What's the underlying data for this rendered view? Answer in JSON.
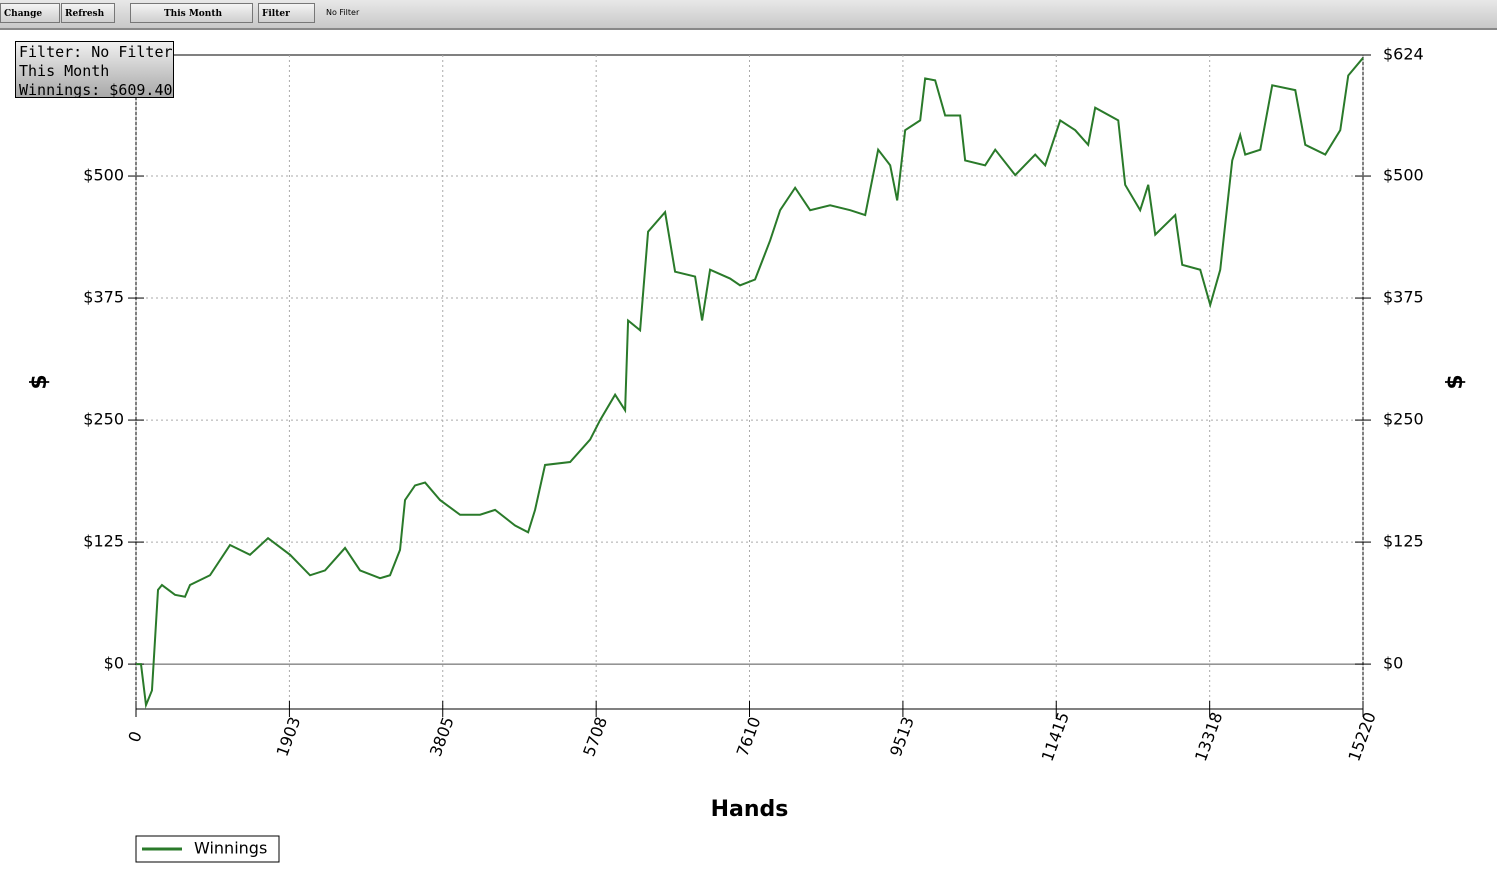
{
  "ui": {
    "toolbar": {
      "change": "Change",
      "refresh": "Refresh",
      "period": "This Month",
      "filter": "Filter",
      "filter_status": "No Filter"
    },
    "info_box": [
      "Filter: No Filter",
      "This Month",
      "Winnings: $609.40"
    ]
  },
  "chart_data": {
    "type": "line",
    "x_label": "Hands",
    "y_label": "$",
    "y2_label": "$",
    "x": [
      0,
      62,
      124,
      198,
      273,
      322,
      484,
      608,
      670,
      918,
      1166,
      1414,
      1638,
      1911,
      2159,
      2345,
      2593,
      2779,
      3027,
      3151,
      3275,
      3337,
      3461,
      3586,
      3772,
      4020,
      4268,
      4454,
      4702,
      4864,
      4950,
      5074,
      5385,
      5633,
      5757,
      5943,
      6067,
      6104,
      6253,
      6352,
      6563,
      6687,
      6935,
      7022,
      7121,
      7369,
      7493,
      7679,
      7866,
      7990,
      8176,
      8362,
      8610,
      8859,
      9045,
      9206,
      9355,
      9442,
      9541,
      9727,
      9789,
      9913,
      10037,
      10223,
      10285,
      10533,
      10658,
      10906,
      11154,
      11278,
      11464,
      11650,
      11811,
      11898,
      12184,
      12270,
      12456,
      12556,
      12643,
      12891,
      12978,
      13201,
      13325,
      13449,
      13598,
      13697,
      13759,
      13946,
      14094,
      14380,
      14504,
      14752,
      14938,
      15037,
      15220
    ],
    "series": [
      {
        "name": "Winnings",
        "color": "#2a7a2a",
        "values": [
          0,
          0,
          -42,
          -27,
          76,
          81,
          71,
          69,
          81,
          91,
          122,
          112,
          129,
          112,
          91,
          96,
          119,
          96,
          88,
          91,
          117,
          168,
          183,
          186,
          168,
          153,
          153,
          158,
          142,
          135,
          158,
          204,
          207,
          230,
          250,
          276,
          260,
          352,
          342,
          443,
          463,
          402,
          397,
          352,
          404,
          395,
          388,
          394,
          434,
          465,
          488,
          465,
          470,
          465,
          460,
          527,
          511,
          475,
          547,
          557,
          600,
          598,
          562,
          562,
          516,
          511,
          527,
          501,
          522,
          511,
          557,
          547,
          532,
          570,
          557,
          491,
          465,
          491,
          440,
          460,
          409,
          404,
          368,
          404,
          516,
          542,
          522,
          527,
          593,
          588,
          532,
          522,
          547,
          603,
          621
        ]
      }
    ],
    "xlim": [
      0,
      15220
    ],
    "xticks": [
      0,
      1903,
      3805,
      5708,
      7610,
      9513,
      11415,
      13318,
      15220
    ],
    "ylim": [
      -46,
      624
    ],
    "yticks": [
      {
        "value": 0,
        "label": "$0"
      },
      {
        "value": 125,
        "label": "$125"
      },
      {
        "value": 250,
        "label": "$250"
      },
      {
        "value": 375,
        "label": "$375"
      },
      {
        "value": 500,
        "label": "$500"
      }
    ],
    "y2lim": [
      -46,
      624
    ],
    "y2ticks": [
      {
        "value": 0,
        "label": "$0"
      },
      {
        "value": 125,
        "label": "$125"
      },
      {
        "value": 250,
        "label": "$250"
      },
      {
        "value": 375,
        "label": "$375"
      },
      {
        "value": 500,
        "label": "$500"
      },
      {
        "value": 624,
        "label": "$624"
      }
    ],
    "grid": true,
    "legend": "bottom-left"
  }
}
